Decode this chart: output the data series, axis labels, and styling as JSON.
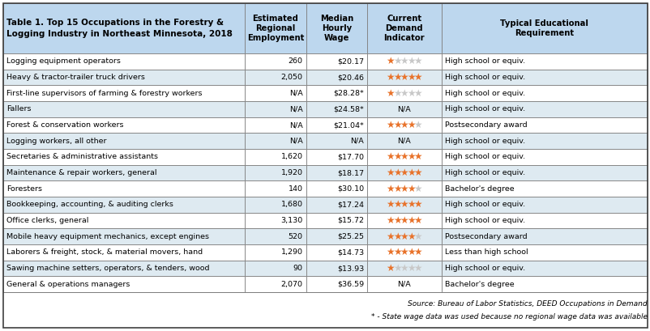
{
  "title_line1": "Table 1. Top 15 Occupations in the Forestry &",
  "title_line2": "Logging Industry in Northeast Minnesota, 2018",
  "col_headers": [
    "Estimated\nRegional\nEmployment",
    "Median\nHourly\nWage",
    "Current\nDemand\nIndicator",
    "Typical Educational\nRequirement"
  ],
  "rows": [
    [
      "Logging equipment operators",
      "260",
      "$20.17",
      1,
      "High school or equiv."
    ],
    [
      "Heavy & tractor-trailer truck drivers",
      "2,050",
      "$20.46",
      5,
      "High school or equiv."
    ],
    [
      "First-line supervisors of farming & forestry workers",
      "N/A",
      "$28.28*",
      1,
      "High school or equiv."
    ],
    [
      "Fallers",
      "N/A",
      "$24.58*",
      "N/A",
      "High school or equiv."
    ],
    [
      "Forest & conservation workers",
      "N/A",
      "$21.04*",
      4,
      "Postsecondary award"
    ],
    [
      "Logging workers, all other",
      "N/A",
      "N/A",
      "N/A",
      "High school or equiv."
    ],
    [
      "Secretaries & administrative assistants",
      "1,620",
      "$17.70",
      5,
      "High school or equiv."
    ],
    [
      "Maintenance & repair workers, general",
      "1,920",
      "$18.17",
      5,
      "High school or equiv."
    ],
    [
      "Foresters",
      "140",
      "$30.10",
      4,
      "Bachelor's degree"
    ],
    [
      "Bookkeeping, accounting, & auditing clerks",
      "1,680",
      "$17.24",
      5,
      "High school or equiv."
    ],
    [
      "Office clerks, general",
      "3,130",
      "$15.72",
      5,
      "High school or equiv."
    ],
    [
      "Mobile heavy equipment mechanics, except engines",
      "520",
      "$25.25",
      4,
      "Postsecondary award"
    ],
    [
      "Laborers & freight, stock, & material movers, hand",
      "1,290",
      "$14.73",
      5,
      "Less than high school"
    ],
    [
      "Sawing machine setters, operators, & tenders, wood",
      "90",
      "$13.93",
      1,
      "High school or equiv."
    ],
    [
      "General & operations managers",
      "2,070",
      "$36.59",
      "N/A",
      "Bachelor's degree"
    ]
  ],
  "footer1": "Source: Bureau of Labor Statistics, DEED Occupations in Demand",
  "footer2": "* - State wage data was used because no regional wage data was available",
  "header_bg": "#BDD7EE",
  "row_bg_blue": "#DEEAF1",
  "row_bg_white": "#FFFFFF",
  "star_filled": "#E8722A",
  "star_empty": "#C8C8C8",
  "total_stars": 5,
  "border_color": "#7F7F7F",
  "text_color": "#000000",
  "col_props": [
    0.375,
    0.095,
    0.095,
    0.115,
    0.32
  ]
}
